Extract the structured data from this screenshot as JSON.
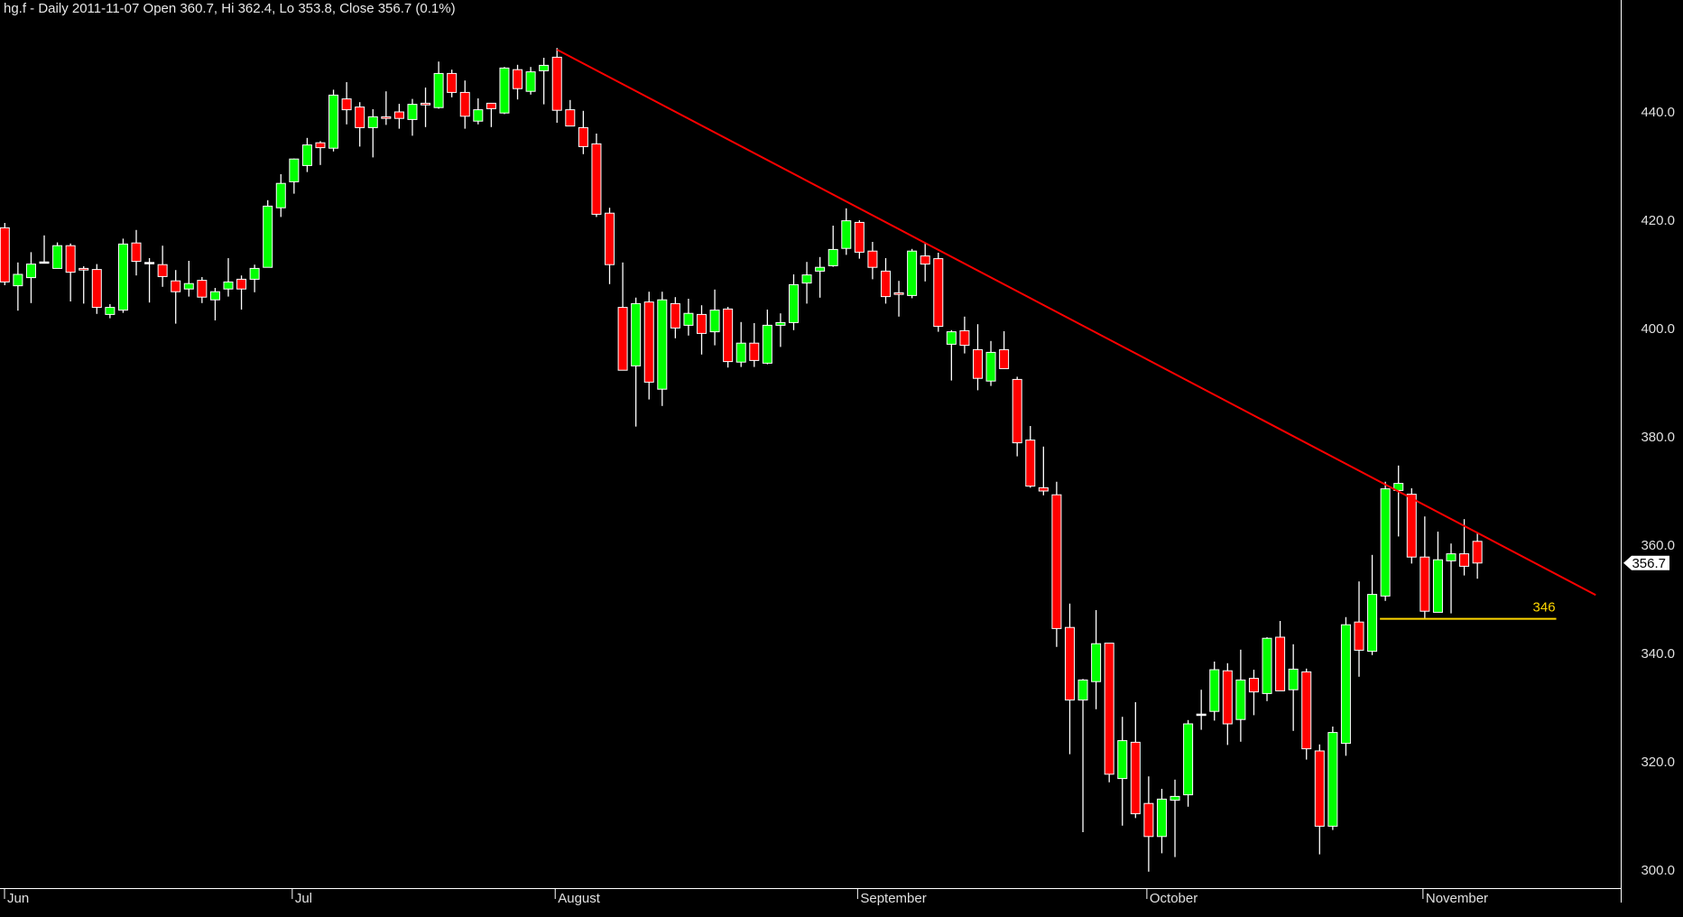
{
  "title": "hg.f - Daily 2011-11-07 Open 360.7, Hi 362.4, Lo 353.8, Close 356.7 (0.1%)",
  "chart_data": {
    "type": "candlestick",
    "symbol": "hg.f",
    "period": "Daily",
    "ylim": [
      296,
      454
    ],
    "y_ticks": [
      "300.0",
      "320.0",
      "340.0",
      "360.0",
      "380.0",
      "400.0",
      "420.0",
      "440.0"
    ],
    "y_tick_values": [
      300,
      320,
      340,
      360,
      380,
      400,
      420,
      440
    ],
    "x_ticks": [
      {
        "date": "2011-06-01",
        "label": "Jun"
      },
      {
        "date": "2011-07-01",
        "label": "Jul"
      },
      {
        "date": "2011-08-01",
        "label": "August"
      },
      {
        "date": "2011-09-01",
        "label": "September"
      },
      {
        "date": "2011-10-03",
        "label": "October"
      },
      {
        "date": "2011-11-01",
        "label": "November"
      }
    ],
    "last_price_label": "356.7",
    "colors": {
      "up": "#00ff00",
      "down": "#ff0000",
      "wick": "#ffffff",
      "trendline": "#ff0000",
      "support": "#ffd700",
      "background": "#000000"
    },
    "trendline": {
      "start": {
        "date": "2011-08-01",
        "price": 451.5
      },
      "end": {
        "date": "2011-11-18",
        "price": 350.8
      }
    },
    "support": {
      "start": "2011-10-27",
      "end": "2011-11-15",
      "price": 346.4,
      "label": "346"
    },
    "columns": [
      "date",
      "open",
      "high",
      "low",
      "close"
    ],
    "candles": [
      [
        "2011-06-01",
        418.6,
        419.5,
        408.0,
        408.6
      ],
      [
        "2011-06-02",
        407.9,
        412.2,
        403.3,
        410.0
      ],
      [
        "2011-06-03",
        409.4,
        414.1,
        404.7,
        411.9
      ],
      [
        "2011-06-06",
        412.2,
        417.2,
        412.0,
        412.3
      ],
      [
        "2011-06-07",
        411.1,
        415.9,
        411.1,
        415.3
      ],
      [
        "2011-06-08",
        415.3,
        415.7,
        405.0,
        410.4
      ],
      [
        "2011-06-09",
        411.1,
        411.5,
        404.6,
        410.8
      ],
      [
        "2011-06-10",
        410.9,
        411.9,
        402.7,
        403.9
      ],
      [
        "2011-06-13",
        402.6,
        404.5,
        401.9,
        403.9
      ],
      [
        "2011-06-14",
        403.4,
        416.6,
        402.9,
        415.6
      ],
      [
        "2011-06-15",
        415.8,
        418.2,
        409.8,
        412.4
      ],
      [
        "2011-06-16",
        412.1,
        413.0,
        404.8,
        412.2
      ],
      [
        "2011-06-17",
        411.8,
        415.3,
        407.7,
        409.6
      ],
      [
        "2011-06-20",
        408.8,
        410.8,
        400.9,
        406.8
      ],
      [
        "2011-06-21",
        407.3,
        412.5,
        405.9,
        408.3
      ],
      [
        "2011-06-22",
        408.9,
        409.5,
        404.7,
        405.8
      ],
      [
        "2011-06-23",
        405.3,
        407.5,
        401.5,
        406.8
      ],
      [
        "2011-06-24",
        407.3,
        413.0,
        405.9,
        408.6
      ],
      [
        "2011-06-27",
        409.1,
        409.8,
        403.5,
        407.3
      ],
      [
        "2011-06-28",
        409.1,
        411.8,
        406.7,
        411.1
      ],
      [
        "2011-06-29",
        411.3,
        423.7,
        411.3,
        422.6
      ],
      [
        "2011-06-30",
        422.3,
        428.5,
        420.6,
        426.8
      ],
      [
        "2011-07-01",
        427.1,
        431.4,
        424.9,
        431.3
      ],
      [
        "2011-07-05",
        430.1,
        435.2,
        428.9,
        433.9
      ],
      [
        "2011-07-06",
        434.3,
        434.6,
        430.2,
        433.4
      ],
      [
        "2011-07-07",
        433.3,
        444.1,
        432.7,
        443.1
      ],
      [
        "2011-07-08",
        442.4,
        445.5,
        437.7,
        440.4
      ],
      [
        "2011-07-11",
        440.9,
        441.8,
        433.6,
        437.1
      ],
      [
        "2011-07-12",
        437.1,
        440.5,
        431.6,
        439.1
      ],
      [
        "2011-07-13",
        439.1,
        443.8,
        437.6,
        438.8
      ],
      [
        "2011-07-14",
        440.0,
        441.5,
        436.9,
        438.8
      ],
      [
        "2011-07-15",
        438.6,
        442.4,
        435.6,
        441.4
      ],
      [
        "2011-07-18",
        441.6,
        444.5,
        437.2,
        441.3
      ],
      [
        "2011-07-19",
        440.8,
        449.3,
        440.6,
        447.1
      ],
      [
        "2011-07-20",
        447.1,
        447.8,
        442.7,
        443.6
      ],
      [
        "2011-07-21",
        443.6,
        445.8,
        436.9,
        439.2
      ],
      [
        "2011-07-22",
        438.3,
        442.5,
        437.7,
        440.4
      ],
      [
        "2011-07-25",
        441.6,
        441.6,
        437.2,
        440.6
      ],
      [
        "2011-07-26",
        439.8,
        448.3,
        439.6,
        448.1
      ],
      [
        "2011-07-27",
        447.8,
        448.7,
        442.3,
        444.3
      ],
      [
        "2011-07-28",
        443.8,
        448.3,
        443.2,
        447.4
      ],
      [
        "2011-07-29",
        447.6,
        450.0,
        441.4,
        448.6
      ],
      [
        "2011-08-01",
        450.1,
        451.8,
        438.0,
        440.3
      ],
      [
        "2011-08-02",
        440.4,
        442.2,
        437.4,
        437.4
      ],
      [
        "2011-08-03",
        437.1,
        440.2,
        432.2,
        433.6
      ],
      [
        "2011-08-04",
        434.1,
        436.0,
        420.6,
        421.1
      ],
      [
        "2011-08-05",
        421.3,
        422.3,
        408.2,
        411.8
      ],
      [
        "2011-08-08",
        403.9,
        412.2,
        392.3,
        392.3
      ],
      [
        "2011-08-09",
        393.1,
        405.7,
        381.9,
        404.6
      ],
      [
        "2011-08-10",
        404.9,
        406.8,
        386.9,
        390.1
      ],
      [
        "2011-08-11",
        388.8,
        406.8,
        385.7,
        405.3
      ],
      [
        "2011-08-12",
        404.6,
        405.8,
        398.2,
        400.1
      ],
      [
        "2011-08-15",
        400.6,
        405.5,
        398.7,
        402.8
      ],
      [
        "2011-08-16",
        402.6,
        404.3,
        395.2,
        399.1
      ],
      [
        "2011-08-17",
        399.4,
        407.2,
        396.9,
        403.4
      ],
      [
        "2011-08-18",
        403.6,
        404.0,
        392.8,
        393.9
      ],
      [
        "2011-08-19",
        393.8,
        401.2,
        392.9,
        397.3
      ],
      [
        "2011-08-22",
        397.3,
        401.0,
        392.9,
        394.1
      ],
      [
        "2011-08-23",
        393.6,
        403.5,
        393.4,
        400.6
      ],
      [
        "2011-08-24",
        400.6,
        402.8,
        396.6,
        401.1
      ],
      [
        "2011-08-25",
        401.1,
        410.0,
        399.7,
        408.1
      ],
      [
        "2011-08-26",
        408.4,
        412.3,
        404.6,
        409.9
      ],
      [
        "2011-08-29",
        410.6,
        413.2,
        405.7,
        411.3
      ],
      [
        "2011-08-30",
        411.6,
        419.0,
        411.4,
        414.6
      ],
      [
        "2011-08-31",
        414.8,
        422.2,
        413.6,
        419.9
      ],
      [
        "2011-09-01",
        419.6,
        420.0,
        412.9,
        414.1
      ],
      [
        "2011-09-02",
        414.3,
        416.0,
        409.1,
        411.3
      ],
      [
        "2011-09-05",
        410.6,
        413.0,
        404.6,
        405.9
      ],
      [
        "2011-09-06",
        406.6,
        408.8,
        402.2,
        406.3
      ],
      [
        "2011-09-07",
        406.1,
        414.7,
        405.6,
        414.3
      ],
      [
        "2011-09-08",
        413.4,
        415.7,
        408.7,
        411.9
      ],
      [
        "2011-09-09",
        412.9,
        414.0,
        399.4,
        400.4
      ],
      [
        "2011-09-12",
        397.1,
        399.7,
        390.4,
        399.4
      ],
      [
        "2011-09-13",
        399.6,
        402.2,
        395.4,
        396.9
      ],
      [
        "2011-09-14",
        396.1,
        400.8,
        388.6,
        390.8
      ],
      [
        "2011-09-15",
        390.3,
        397.7,
        389.4,
        395.6
      ],
      [
        "2011-09-16",
        396.1,
        399.5,
        392.6,
        392.6
      ],
      [
        "2011-09-19",
        390.6,
        391.1,
        376.4,
        378.9
      ],
      [
        "2011-09-20",
        379.4,
        382.0,
        370.6,
        370.9
      ],
      [
        "2011-09-21",
        370.6,
        378.2,
        369.2,
        370.0
      ],
      [
        "2011-09-22",
        369.3,
        371.7,
        341.2,
        344.6
      ],
      [
        "2011-09-23",
        344.8,
        349.2,
        321.4,
        331.4
      ],
      [
        "2011-09-26",
        331.4,
        335.3,
        307.0,
        335.1
      ],
      [
        "2011-09-27",
        334.8,
        348.0,
        329.7,
        341.8
      ],
      [
        "2011-09-28",
        341.9,
        341.9,
        316.2,
        317.7
      ],
      [
        "2011-09-29",
        316.9,
        328.3,
        308.2,
        323.9
      ],
      [
        "2011-09-30",
        323.6,
        331.0,
        309.6,
        310.4
      ],
      [
        "2011-10-03",
        312.3,
        317.3,
        299.7,
        306.2
      ],
      [
        "2011-10-04",
        306.2,
        315.0,
        303.1,
        313.1
      ],
      [
        "2011-10-05",
        312.9,
        316.7,
        302.4,
        313.6
      ],
      [
        "2011-10-06",
        313.9,
        327.7,
        311.7,
        327.0
      ],
      [
        "2011-10-07",
        328.7,
        333.3,
        325.9,
        328.8
      ],
      [
        "2011-10-10",
        329.3,
        338.5,
        327.6,
        337.0
      ],
      [
        "2011-10-11",
        336.8,
        338.2,
        323.1,
        327.0
      ],
      [
        "2011-10-12",
        327.8,
        340.7,
        323.7,
        335.1
      ],
      [
        "2011-10-13",
        335.4,
        337.0,
        328.6,
        332.9
      ],
      [
        "2011-10-14",
        332.6,
        343.0,
        331.2,
        342.8
      ],
      [
        "2011-10-17",
        343.0,
        346.0,
        333.1,
        333.1
      ],
      [
        "2011-10-18",
        333.3,
        341.7,
        325.7,
        337.1
      ],
      [
        "2011-10-19",
        336.6,
        337.2,
        320.4,
        322.4
      ],
      [
        "2011-10-20",
        322.0,
        323.2,
        302.9,
        308.1
      ],
      [
        "2011-10-21",
        308.1,
        326.5,
        307.4,
        325.4
      ],
      [
        "2011-10-24",
        323.4,
        346.7,
        321.1,
        345.3
      ],
      [
        "2011-10-25",
        345.8,
        353.3,
        335.7,
        340.6
      ],
      [
        "2011-10-26",
        340.4,
        358.2,
        339.7,
        350.9
      ],
      [
        "2011-10-27",
        350.6,
        371.7,
        349.7,
        370.4
      ],
      [
        "2011-10-28",
        370.1,
        374.7,
        361.6,
        371.4
      ],
      [
        "2011-10-31",
        369.4,
        370.5,
        356.6,
        357.8
      ],
      [
        "2011-11-01",
        357.8,
        365.3,
        346.5,
        347.8
      ],
      [
        "2011-11-02",
        347.6,
        362.5,
        347.6,
        357.3
      ],
      [
        "2011-11-03",
        357.1,
        360.3,
        347.4,
        358.4
      ],
      [
        "2011-11-04",
        358.4,
        364.8,
        354.4,
        356.1
      ],
      [
        "2011-11-07",
        360.7,
        362.4,
        353.8,
        356.7
      ]
    ]
  }
}
